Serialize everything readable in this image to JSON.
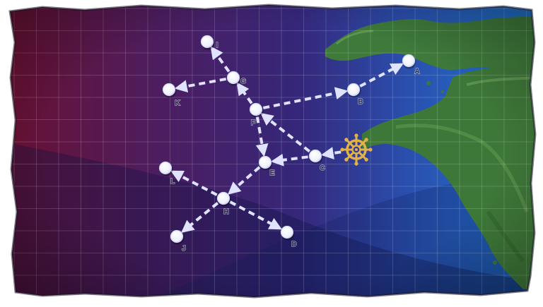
{
  "map": {
    "colors": {
      "deep_left": "#6b1030",
      "mid": "#3a2a78",
      "right": "#1e6ac4",
      "land": "#3d7a3a",
      "route": "#dfe3ff",
      "node": "#ffffff",
      "helm": "#e3b14a"
    },
    "start": {
      "icon": "ship-wheel-icon"
    },
    "nodes": [
      {
        "id": "A",
        "label": "A"
      },
      {
        "id": "B",
        "label": "B"
      },
      {
        "id": "C",
        "label": "C"
      },
      {
        "id": "D",
        "label": "D"
      },
      {
        "id": "E",
        "label": "E"
      },
      {
        "id": "F",
        "label": "F"
      },
      {
        "id": "G",
        "label": "G"
      },
      {
        "id": "H",
        "label": "H"
      },
      {
        "id": "I",
        "label": "I"
      },
      {
        "id": "J",
        "label": "J"
      },
      {
        "id": "K",
        "label": "K"
      },
      {
        "id": "L",
        "label": "L"
      }
    ],
    "routes": [
      {
        "from": "start",
        "to": "C"
      },
      {
        "from": "C",
        "to": "F"
      },
      {
        "from": "C",
        "to": "E"
      },
      {
        "from": "F",
        "to": "E"
      },
      {
        "from": "F",
        "to": "B"
      },
      {
        "from": "B",
        "to": "A"
      },
      {
        "from": "F",
        "to": "G"
      },
      {
        "from": "G",
        "to": "I"
      },
      {
        "from": "G",
        "to": "K"
      },
      {
        "from": "E",
        "to": "H"
      },
      {
        "from": "H",
        "to": "L"
      },
      {
        "from": "H",
        "to": "J"
      },
      {
        "from": "H",
        "to": "D"
      }
    ]
  }
}
